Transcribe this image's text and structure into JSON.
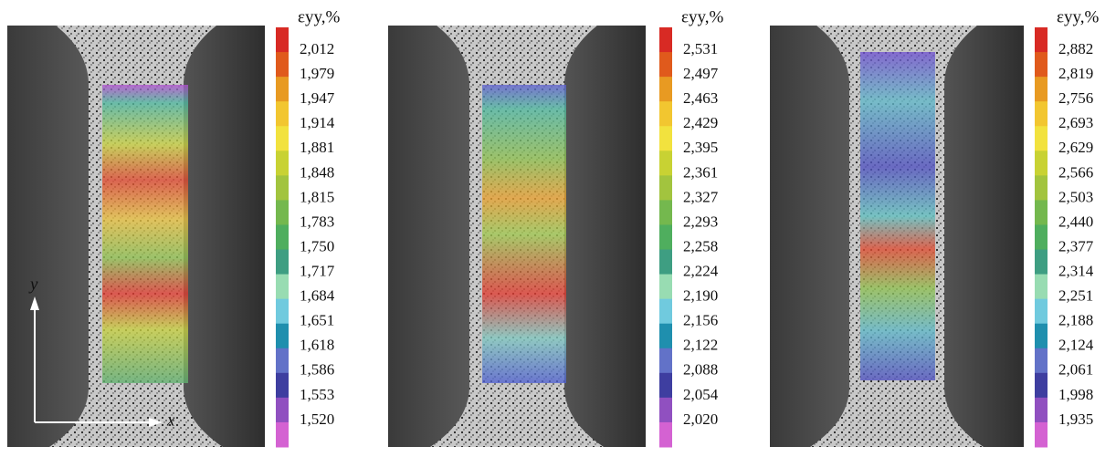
{
  "panels": [
    {
      "colorbar": {
        "title": "εyy,%",
        "labels": [
          "2,012",
          "1,979",
          "1,947",
          "1,914",
          "1,881",
          "1,848",
          "1,815",
          "1,783",
          "1,750",
          "1,717",
          "1,684",
          "1,651",
          "1,618",
          "1,586",
          "1,553",
          "1,520"
        ]
      }
    },
    {
      "colorbar": {
        "title": "εyy,%",
        "labels": [
          "2,531",
          "2,497",
          "2,463",
          "2,429",
          "2,395",
          "2,361",
          "2,327",
          "2,293",
          "2,258",
          "2,224",
          "2,190",
          "2,156",
          "2,122",
          "2,088",
          "2,054",
          "2,020"
        ]
      }
    },
    {
      "colorbar": {
        "title": "εyy,%",
        "labels": [
          "2,882",
          "2,819",
          "2,756",
          "2,693",
          "2,629",
          "2,566",
          "2,503",
          "2,440",
          "2,377",
          "2,314",
          "2,251",
          "2,188",
          "2,124",
          "2,061",
          "1,998",
          "1,935"
        ]
      }
    }
  ],
  "axes": {
    "x": "x",
    "y": "y"
  }
}
